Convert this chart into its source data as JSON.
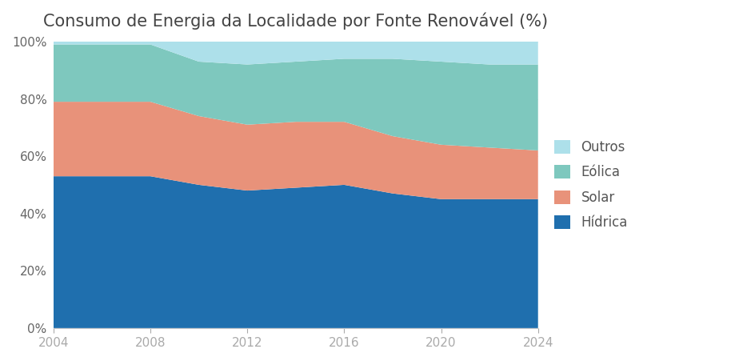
{
  "title": "Consumo de Energia da Localidade por Fonte Renovável (%)",
  "years": [
    2004,
    2006,
    2008,
    2010,
    2012,
    2014,
    2016,
    2018,
    2020,
    2022,
    2024
  ],
  "hidrica": [
    53,
    53,
    53,
    50,
    48,
    49,
    50,
    47,
    45,
    45,
    45
  ],
  "solar": [
    26,
    26,
    26,
    24,
    23,
    23,
    22,
    20,
    19,
    18,
    17
  ],
  "eolica": [
    20,
    20,
    20,
    19,
    21,
    21,
    22,
    27,
    29,
    29,
    30
  ],
  "outros": [
    1,
    1,
    1,
    7,
    8,
    7,
    6,
    6,
    7,
    8,
    8
  ],
  "color_hidrica": "#1F6FAE",
  "color_solar": "#E8927A",
  "color_eolica": "#7EC8BE",
  "color_outros": "#ADE0EA",
  "yticks": [
    0,
    20,
    40,
    60,
    80,
    100
  ],
  "xticks": [
    2004,
    2008,
    2012,
    2016,
    2020,
    2024
  ],
  "ylim": [
    0,
    100
  ],
  "xlim": [
    2004,
    2024
  ],
  "background_color": "#ffffff",
  "title_fontsize": 15,
  "tick_fontsize": 11,
  "legend_fontsize": 12,
  "fig_width": 9.44,
  "fig_height": 4.51,
  "fig_dpi": 100
}
